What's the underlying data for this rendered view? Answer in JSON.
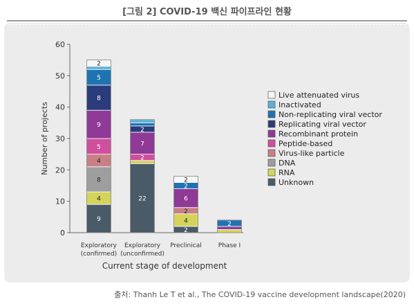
{
  "header": {
    "title": "[그림 2] COVID-19 백신 파이프라인 현황"
  },
  "source": {
    "label": "출처:",
    "text": "Thanh Le T et al., The COVID-19 vaccine development landscape(2020)"
  },
  "chart_data": {
    "type": "bar",
    "stacked": true,
    "title": "",
    "xlabel": "Current stage of development",
    "ylabel": "Number of projects",
    "ylim": [
      0,
      60
    ],
    "yticks": [
      0,
      10,
      20,
      30,
      40,
      50,
      60
    ],
    "categories": [
      [
        "Exploratory",
        "(confirmed)"
      ],
      [
        "Exploratory",
        "(unconfirmed)"
      ],
      [
        "Preclinical"
      ],
      [
        "Phase I"
      ]
    ],
    "series": [
      {
        "name": "Unknown",
        "color": "#4a5a66",
        "values": [
          9,
          22,
          2,
          0
        ],
        "labels": [
          "9",
          "22",
          "2",
          ""
        ]
      },
      {
        "name": "RNA",
        "color": "#d4d35a",
        "values": [
          4,
          1,
          4,
          1
        ],
        "labels": [
          "4",
          "",
          "4",
          ""
        ]
      },
      {
        "name": "DNA",
        "color": "#9e9e9e",
        "values": [
          8,
          0,
          0,
          0
        ],
        "labels": [
          "8",
          "",
          "",
          ""
        ]
      },
      {
        "name": "Virus-like particle",
        "color": "#c88084",
        "values": [
          4,
          0,
          2,
          0
        ],
        "labels": [
          "4",
          "",
          "2",
          ""
        ]
      },
      {
        "name": "Peptide-based",
        "color": "#cf4f9e",
        "values": [
          5,
          2,
          0,
          0
        ],
        "labels": [
          "5",
          "2",
          "",
          ""
        ]
      },
      {
        "name": "Recombinant protein",
        "color": "#8e3a96",
        "values": [
          9,
          7,
          6,
          1
        ],
        "labels": [
          "9",
          "7",
          "6",
          ""
        ]
      },
      {
        "name": "Replicating viral vector",
        "color": "#2a3c7a",
        "values": [
          8,
          2,
          0,
          0
        ],
        "labels": [
          "8",
          "2",
          "",
          ""
        ]
      },
      {
        "name": "Non-replicating viral vector",
        "color": "#1f73b0",
        "values": [
          5,
          1,
          2,
          2
        ],
        "labels": [
          "5",
          "",
          "2",
          "2"
        ]
      },
      {
        "name": "Inactivated",
        "color": "#5ab2d8",
        "values": [
          1,
          1,
          0,
          0
        ],
        "labels": [
          "",
          "",
          "",
          ""
        ]
      },
      {
        "name": "Live attenuated virus",
        "color": "#f6f6f6",
        "values": [
          2,
          0,
          2,
          0
        ],
        "labels": [
          "2",
          "",
          "2",
          ""
        ]
      }
    ],
    "legend_order": [
      "Live attenuated virus",
      "Inactivated",
      "Non-replicating viral vector",
      "Replicating viral vector",
      "Recombinant protein",
      "Peptide-based",
      "Virus-like particle",
      "DNA",
      "RNA",
      "Unknown"
    ],
    "legend_position": "right",
    "grid": false
  }
}
